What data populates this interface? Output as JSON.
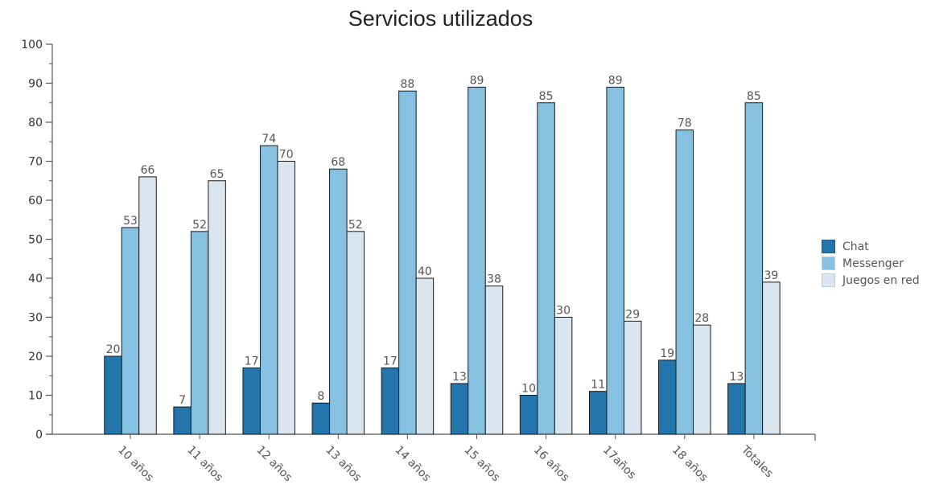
{
  "chart_data": {
    "type": "bar",
    "title": "Servicios utilizados",
    "xlabel": "",
    "ylabel": "",
    "categories": [
      "10 años",
      "11 años",
      "12 años",
      "13 años",
      "14 años",
      "15 años",
      "16 años",
      "17años",
      "18 años",
      "Totales"
    ],
    "series": [
      {
        "name": "Chat",
        "color": "#2276ab",
        "values": [
          20,
          7,
          17,
          8,
          17,
          13,
          10,
          11,
          19,
          13
        ]
      },
      {
        "name": "Messenger",
        "color": "#86c1e2",
        "values": [
          53,
          52,
          74,
          68,
          88,
          89,
          85,
          89,
          78,
          85
        ]
      },
      {
        "name": "Juegos en red",
        "color": "#d9e6ef",
        "values": [
          66,
          65,
          70,
          52,
          40,
          38,
          30,
          29,
          28,
          39
        ]
      }
    ],
    "ylim": [
      0,
      100
    ],
    "yticks": [
      0,
      10,
      20,
      30,
      40,
      50,
      60,
      70,
      80,
      90,
      100
    ],
    "grid": false,
    "legend_position": "right"
  }
}
